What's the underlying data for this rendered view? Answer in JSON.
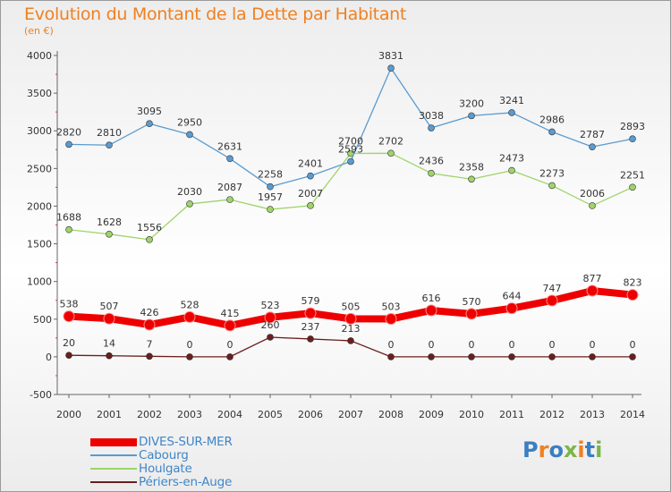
{
  "header": {
    "title": "Evolution du Montant de la Dette par Habitant",
    "subtitle": "(en €)"
  },
  "logo": {
    "letters": [
      "P",
      "r",
      "o",
      "x",
      "i",
      "t",
      "i"
    ],
    "colors": [
      "#3a7fc1",
      "#f08020",
      "#3a7fc1",
      "#7ab648",
      "#f08020",
      "#3a7fc1",
      "#7ab648"
    ]
  },
  "chart_data": {
    "type": "line",
    "title": "Evolution du Montant de la Dette par Habitant",
    "subtitle": "(en €)",
    "x": [
      "2000",
      "2001",
      "2002",
      "2003",
      "2004",
      "2005",
      "2006",
      "2007",
      "2008",
      "2009",
      "2010",
      "2011",
      "2012",
      "2013",
      "2014"
    ],
    "ylim": [
      -500,
      4000
    ],
    "yticks": [
      -500,
      0,
      500,
      1000,
      1500,
      2000,
      2500,
      3000,
      3500,
      4000
    ],
    "grid": false,
    "legend": "bottom-left",
    "series": [
      {
        "name": "DIVES-SUR-MER",
        "color": "#ee0000",
        "values": [
          538,
          507,
          426,
          528,
          415,
          523,
          579,
          505,
          503,
          616,
          570,
          644,
          747,
          877,
          823
        ]
      },
      {
        "name": "Cabourg",
        "color": "#5a9bd0",
        "values": [
          2820,
          2810,
          3095,
          2950,
          2631,
          2258,
          2401,
          2593,
          3831,
          3038,
          3200,
          3241,
          2986,
          2787,
          2893
        ]
      },
      {
        "name": "Houlgate",
        "color": "#9ed46a",
        "values": [
          1688,
          1628,
          1556,
          2030,
          2087,
          1957,
          2007,
          2700,
          2702,
          2436,
          2358,
          2473,
          2273,
          2006,
          2251
        ]
      },
      {
        "name": "Périers-en-Auge",
        "color": "#6b1e1e",
        "values": [
          20,
          14,
          7,
          0,
          0,
          260,
          237,
          213,
          0,
          0,
          0,
          0,
          0,
          0,
          0
        ]
      }
    ]
  }
}
